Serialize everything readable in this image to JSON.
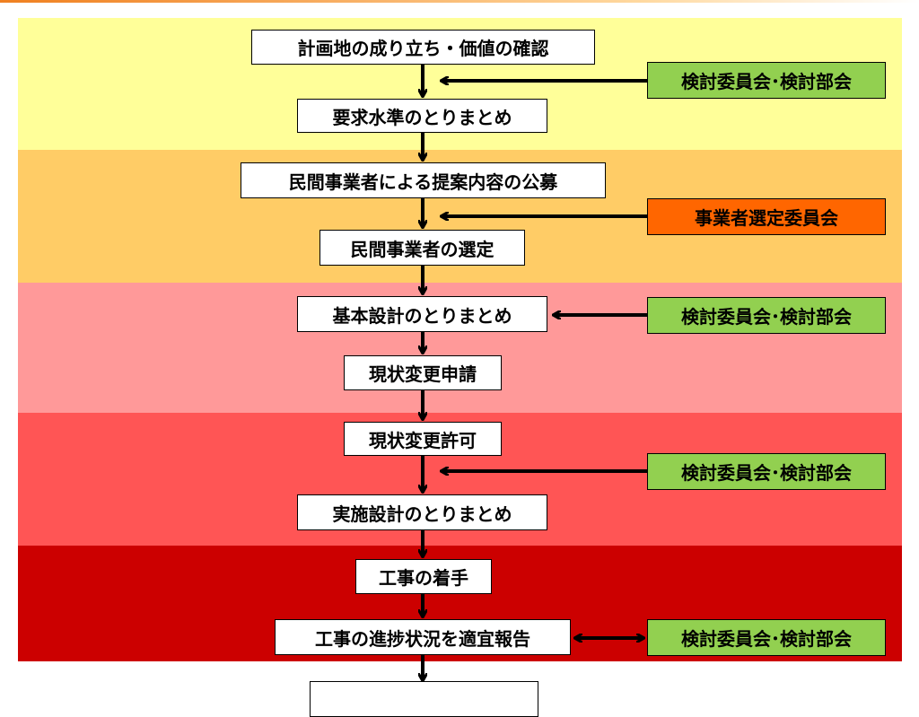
{
  "colors": {
    "phase1": "#ffff99",
    "phase2": "#ffcc66",
    "phase3": "#ff9999",
    "phase4": "#ff5555",
    "phase5": "#cc0000",
    "committee": "#92d050",
    "selection": "#ff6600"
  },
  "steps": [
    "計画地の成り立ち・価値の確認",
    "要求水準のとりまとめ",
    "民間事業者による提案内容の公募",
    "民間事業者の選定",
    "基本設計のとりまとめ",
    "現状変更申請",
    "現状変更許可",
    "実施設計のとりまとめ",
    "工事の着手",
    "工事の進捗状況を適宜報告",
    ""
  ],
  "side_boxes": [
    "検討委員会･検討部会",
    "事業者選定委員会",
    "検討委員会･検討部会",
    "検討委員会･検討部会",
    "検討委員会･検討部会"
  ]
}
